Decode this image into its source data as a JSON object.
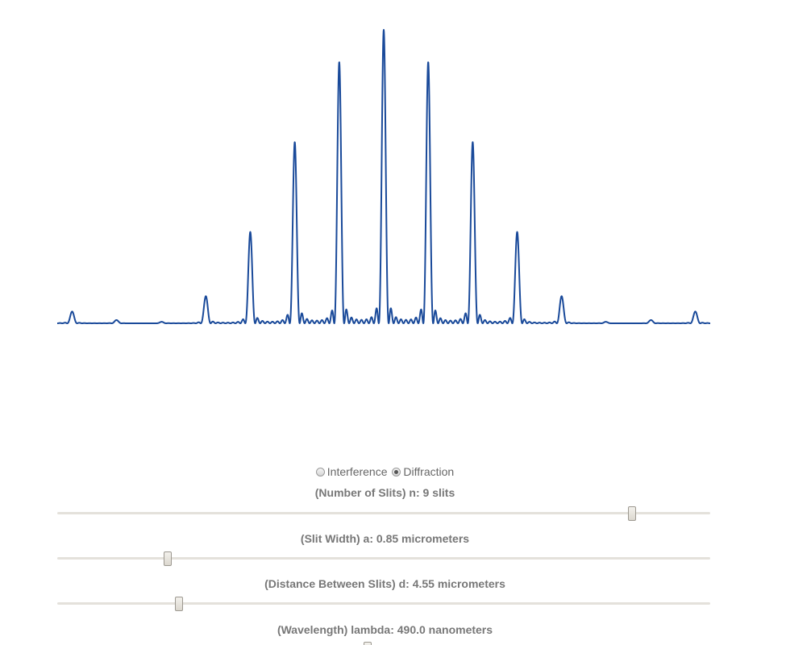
{
  "plot": {
    "line_color": "#1a4a9a",
    "slits": 9,
    "slit_width": 0.85,
    "slit_distance": 4.55,
    "wavelength": 490.0
  },
  "modes": {
    "interference_label": "Interference",
    "diffraction_label": "Diffraction",
    "selected": "diffraction"
  },
  "params": {
    "slits_label": "(Number of Slits) n: 9 slits",
    "slits_fraction": 0.885,
    "width_label": "(Slit Width) a: 0.85 micrometers",
    "width_fraction": 0.165,
    "distance_label": "(Distance Between Slits) d: 4.55 micrometers",
    "distance_fraction": 0.183,
    "wavelength_label": "(Wavelength) lambda: 490.0 nanometers",
    "wavelength_fraction": 0.475
  }
}
